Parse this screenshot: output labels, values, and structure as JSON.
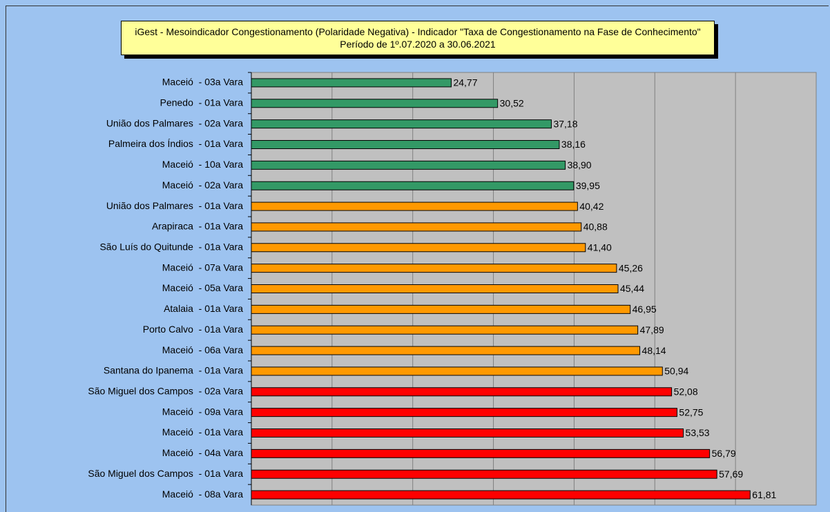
{
  "chart_data": {
    "type": "barh",
    "title": "iGest - Mesoindicador Congestionamento (Polaridade Negativa) - Indicador \"Taxa de Congestionamento na Fase de Conhecimento\" Período de 1º.07.2020 a 30.06.2021",
    "categories": [
      "Maceió  - 03a Vara",
      "Penedo  - 01a Vara",
      "União dos Palmares  - 02a Vara",
      "Palmeira dos Índios  - 01a Vara",
      "Maceió  - 10a Vara",
      "Maceió  - 02a Vara",
      "União dos Palmares  - 01a Vara",
      "Arapiraca  - 01a Vara",
      "São Luís do Quitunde  - 01a Vara",
      "Maceió  - 07a Vara",
      "Maceió  - 05a Vara",
      "Atalaia  - 01a Vara",
      "Porto Calvo  - 01a Vara",
      "Maceió  - 06a Vara",
      "Santana do Ipanema  - 01a Vara",
      "São Miguel dos Campos  - 02a Vara",
      "Maceió  - 09a Vara",
      "Maceió  - 01a Vara",
      "Maceió  - 04a Vara",
      "São Miguel dos Campos  - 01a Vara",
      "Maceió  - 08a Vara"
    ],
    "values": [
      24.77,
      30.52,
      37.18,
      38.16,
      38.9,
      39.95,
      40.42,
      40.88,
      41.4,
      45.26,
      45.44,
      46.95,
      47.89,
      48.14,
      50.94,
      52.08,
      52.75,
      53.53,
      56.79,
      57.69,
      61.81
    ],
    "value_labels": [
      "24,77",
      "30,52",
      "37,18",
      "38,16",
      "38,90",
      "39,95",
      "40,42",
      "40,88",
      "41,40",
      "45,26",
      "45,44",
      "46,95",
      "47,89",
      "48,14",
      "50,94",
      "52,08",
      "52,75",
      "53,53",
      "56,79",
      "57,69",
      "61,81"
    ],
    "colors": [
      "#339966",
      "#339966",
      "#339966",
      "#339966",
      "#339966",
      "#339966",
      "#ff9900",
      "#ff9900",
      "#ff9900",
      "#ff9900",
      "#ff9900",
      "#ff9900",
      "#ff9900",
      "#ff9900",
      "#ff9900",
      "#ff0000",
      "#ff0000",
      "#ff0000",
      "#ff0000",
      "#ff0000",
      "#ff0000"
    ],
    "xlim": [
      0,
      70
    ],
    "xticks": [
      0,
      10,
      20,
      30,
      40,
      50,
      60,
      70
    ],
    "grid": true
  }
}
